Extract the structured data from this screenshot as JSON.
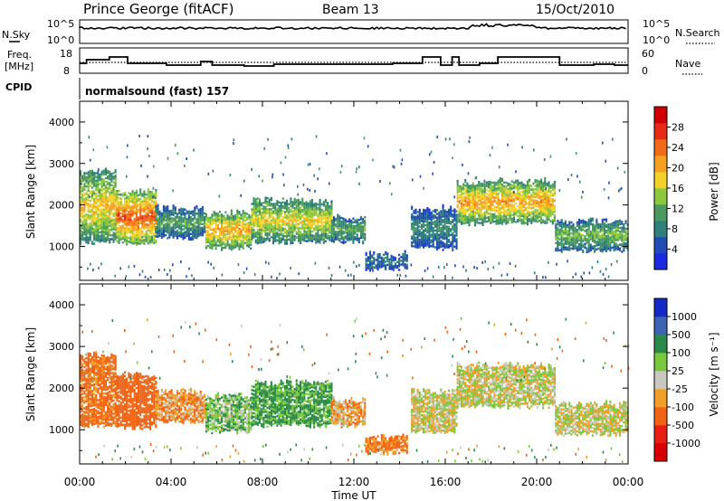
{
  "header": {
    "station": "Prince George (fitACF)",
    "beam": "Beam 13",
    "date": "15/Oct/2010"
  },
  "noise_panel": {
    "left_label": "N.Sky",
    "right_label": "N.Search",
    "left_ticks": [
      "10^5",
      "10^0"
    ],
    "right_ticks": [
      "10^5",
      "10^0"
    ]
  },
  "freq_panel": {
    "left_label_1": "Freq.",
    "left_label_2": "[MHz]",
    "left_ticks": [
      "18",
      "8"
    ],
    "right_label": "Nave",
    "right_ticks": [
      "60",
      "0"
    ],
    "cpid_label": "CPID",
    "program": "normalsound (fast) 157"
  },
  "x_axis": {
    "ticks": [
      "00:00",
      "04:00",
      "08:00",
      "12:00",
      "16:00",
      "20:00",
      "00:00"
    ],
    "label": "Time UT"
  },
  "y_axis": {
    "label": "Slant Range [km]",
    "ticks": [
      "1000",
      "2000",
      "3000",
      "4000"
    ]
  },
  "power_scale": {
    "title": "Power [dB]",
    "labels": [
      "4",
      "8",
      "12",
      "16",
      "20",
      "24",
      "28"
    ],
    "colors": [
      "#1a2ae0",
      "#1f4db5",
      "#2f7f7a",
      "#4a9a60",
      "#8cc83c",
      "#f5d22a",
      "#f5a020",
      "#f06a18",
      "#e82a18",
      "#d00000"
    ]
  },
  "velocity_scale": {
    "title": "Velocity [m s⁻¹]",
    "labels": [
      "1000",
      "500",
      "100",
      "25",
      "-25",
      "-100",
      "-500",
      "-1000"
    ],
    "colors": [
      "#1428c8",
      "#3c64b4",
      "#2a8a4a",
      "#7ac83c",
      "#c8c8c0",
      "#f0a028",
      "#f06414",
      "#e81e14",
      "#d80000"
    ]
  },
  "chart_data": [
    {
      "type": "heatmap",
      "title": "Power [dB]",
      "xlabel": "Time UT",
      "ylabel": "Slant Range [km]",
      "xlim": [
        0,
        24
      ],
      "ylim": [
        180,
        4500
      ],
      "clim": [
        0,
        30
      ],
      "bands": [
        {
          "t0": 0.0,
          "t1": 1.6,
          "r0": 1100,
          "r1": 2800,
          "level": 18
        },
        {
          "t0": 1.6,
          "t1": 3.3,
          "r0": 1050,
          "r1": 2300,
          "level": 24
        },
        {
          "t0": 3.3,
          "t1": 5.5,
          "r0": 1200,
          "r1": 1900,
          "level": 11
        },
        {
          "t0": 5.5,
          "t1": 7.5,
          "r0": 950,
          "r1": 1800,
          "level": 20
        },
        {
          "t0": 7.5,
          "t1": 11.0,
          "r0": 1100,
          "r1": 2100,
          "level": 17
        },
        {
          "t0": 11.0,
          "t1": 12.5,
          "r0": 1100,
          "r1": 1700,
          "level": 12
        },
        {
          "t0": 12.5,
          "t1": 14.3,
          "r0": 450,
          "r1": 800,
          "level": 8
        },
        {
          "t0": 14.5,
          "t1": 16.5,
          "r0": 950,
          "r1": 1900,
          "level": 9
        },
        {
          "t0": 16.5,
          "t1": 20.8,
          "r0": 1550,
          "r1": 2550,
          "level": 20
        },
        {
          "t0": 20.8,
          "t1": 24.0,
          "r0": 900,
          "r1": 1600,
          "level": 13
        }
      ]
    },
    {
      "type": "heatmap",
      "title": "Velocity [m s⁻¹]",
      "xlabel": "Time UT",
      "ylabel": "Slant Range [km]",
      "xlim": [
        0,
        24
      ],
      "ylim": [
        180,
        4500
      ],
      "clim": [
        -1000,
        1000
      ],
      "bands": [
        {
          "t0": 0.0,
          "t1": 1.6,
          "r0": 1100,
          "r1": 2800,
          "level": -150
        },
        {
          "t0": 1.6,
          "t1": 3.3,
          "r0": 1050,
          "r1": 2300,
          "level": -200
        },
        {
          "t0": 3.3,
          "t1": 5.5,
          "r0": 1200,
          "r1": 1900,
          "level": -80
        },
        {
          "t0": 5.5,
          "t1": 7.5,
          "r0": 950,
          "r1": 1800,
          "level": 60
        },
        {
          "t0": 7.5,
          "t1": 11.0,
          "r0": 1100,
          "r1": 2100,
          "level": 120
        },
        {
          "t0": 11.0,
          "t1": 12.5,
          "r0": 1100,
          "r1": 1700,
          "level": -60
        },
        {
          "t0": 12.5,
          "t1": 14.3,
          "r0": 450,
          "r1": 800,
          "level": -120
        },
        {
          "t0": 14.5,
          "t1": 16.5,
          "r0": 950,
          "r1": 1900,
          "level": 0
        },
        {
          "t0": 16.5,
          "t1": 20.8,
          "r0": 1550,
          "r1": 2550,
          "level": 5
        },
        {
          "t0": 20.8,
          "t1": 24.0,
          "r0": 900,
          "r1": 1600,
          "level": 0
        }
      ]
    }
  ]
}
